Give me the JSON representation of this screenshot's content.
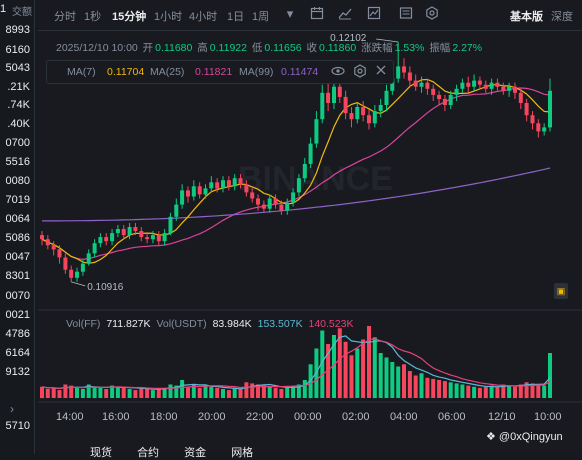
{
  "left_panel": {
    "header_value": "1",
    "header_label": "交额",
    "values": [
      "8993",
      "6160",
      "5043",
      ".21K",
      ".74K",
      ".40K",
      "0700",
      "5516",
      "0080",
      "7019",
      "0064",
      "5086",
      "0047",
      "8301",
      "0070",
      "0021",
      "4786",
      "6164",
      "9132",
      "5710"
    ],
    "expand_icon": "chevron-right-icon"
  },
  "toolbar": {
    "timeframes": [
      "分时",
      "1秒",
      "15分钟",
      "1小时",
      "4小时",
      "1日",
      "1周"
    ],
    "active_timeframe": "15分钟",
    "dropdown_icon": "caret-down-icon",
    "icons": [
      "calendar-icon",
      "chart-type-icon",
      "indicator-icon",
      "layout-icon",
      "settings-icon"
    ],
    "view_basic": "基本版",
    "view_depth": "深度"
  },
  "ohlc": {
    "datetime": "2025/12/10 10:00",
    "open_label": "开",
    "open": "0.11680",
    "high_label": "高",
    "high": "0.11922",
    "low_label": "低",
    "low": "0.11656",
    "close_label": "收",
    "close": "0.11860",
    "change_label": "涨跌幅",
    "change": "1.53%",
    "amplitude_label": "振幅",
    "amplitude": "2.27%"
  },
  "ma": {
    "ma7_label": "MA(7)",
    "ma7": "0.11704",
    "ma25_label": "MA(25)",
    "ma25": "0.11821",
    "ma99_label": "MA(99)",
    "ma99": "0.11474",
    "icons": [
      "eye-icon",
      "settings-icon",
      "close-icon"
    ]
  },
  "price_annotations": {
    "high": "0.12102",
    "low": "0.10916"
  },
  "volume": {
    "vol_label": "Vol(FF)",
    "vol": "711.827K",
    "vol_usdt_label": "Vol(USDT)",
    "vol_usdt": "83.984K",
    "ma1": "153.507K",
    "ma2": "140.523K"
  },
  "x_axis": [
    "14:00",
    "16:00",
    "18:00",
    "20:00",
    "22:00",
    "00:00",
    "02:00",
    "04:00",
    "06:00",
    "12/10",
    "10:00"
  ],
  "bottom_tabs": [
    "现货",
    "合约",
    "资金",
    "网格"
  ],
  "watermark": "@0xQingyun",
  "colors": {
    "up": "#0ecb81",
    "down": "#f6465d",
    "ma7": "#f0b90b",
    "ma25": "#d9459b",
    "ma99": "#8e62c7",
    "vol_ma1": "#5ab9d6",
    "vol_ma2": "#e8417a"
  },
  "chart_data": {
    "type": "candlestick",
    "candles": [
      [
        0.1115,
        0.1113,
        0.1117,
        0.111
      ],
      [
        0.1113,
        0.111,
        0.1115,
        0.1108
      ],
      [
        0.111,
        0.1108,
        0.1112,
        0.1105
      ],
      [
        0.1108,
        0.1104,
        0.111,
        0.1101
      ],
      [
        0.1104,
        0.1098,
        0.1106,
        0.1096
      ],
      [
        0.1098,
        0.1094,
        0.11,
        0.1092
      ],
      [
        0.1094,
        0.1097,
        0.1099,
        0.1092
      ],
      [
        0.1097,
        0.1101,
        0.1103,
        0.1095
      ],
      [
        0.1101,
        0.1106,
        0.1108,
        0.11
      ],
      [
        0.1106,
        0.1111,
        0.1113,
        0.1104
      ],
      [
        0.1111,
        0.1114,
        0.1116,
        0.1109
      ],
      [
        0.1114,
        0.1112,
        0.1116,
        0.111
      ],
      [
        0.1112,
        0.1116,
        0.1118,
        0.111
      ],
      [
        0.1116,
        0.1118,
        0.112,
        0.1114
      ],
      [
        0.1118,
        0.1115,
        0.112,
        0.1113
      ],
      [
        0.1115,
        0.1119,
        0.1121,
        0.1113
      ],
      [
        0.1119,
        0.1117,
        0.1121,
        0.1115
      ],
      [
        0.1117,
        0.1114,
        0.1119,
        0.1112
      ],
      [
        0.1114,
        0.1113,
        0.1116,
        0.1111
      ],
      [
        0.1113,
        0.1115,
        0.1117,
        0.1111
      ],
      [
        0.1115,
        0.1112,
        0.1117,
        0.111
      ],
      [
        0.1112,
        0.1116,
        0.1118,
        0.111
      ],
      [
        0.1116,
        0.1124,
        0.1126,
        0.1115
      ],
      [
        0.1124,
        0.113,
        0.1133,
        0.1122
      ],
      [
        0.113,
        0.1137,
        0.114,
        0.1128
      ],
      [
        0.1137,
        0.1134,
        0.1139,
        0.1131
      ],
      [
        0.1134,
        0.1139,
        0.1142,
        0.1132
      ],
      [
        0.1139,
        0.1135,
        0.1141,
        0.1133
      ],
      [
        0.1135,
        0.1138,
        0.114,
        0.1133
      ],
      [
        0.1138,
        0.1141,
        0.1144,
        0.1136
      ],
      [
        0.1141,
        0.1138,
        0.1143,
        0.1136
      ],
      [
        0.1138,
        0.1142,
        0.1144,
        0.1136
      ],
      [
        0.1142,
        0.1139,
        0.1144,
        0.1137
      ],
      [
        0.1139,
        0.1143,
        0.1145,
        0.1137
      ],
      [
        0.1143,
        0.114,
        0.1145,
        0.1138
      ],
      [
        0.114,
        0.1136,
        0.1142,
        0.1134
      ],
      [
        0.1136,
        0.1133,
        0.1138,
        0.1131
      ],
      [
        0.1133,
        0.113,
        0.1135,
        0.1127
      ],
      [
        0.113,
        0.1128,
        0.1132,
        0.1126
      ],
      [
        0.1128,
        0.1133,
        0.1135,
        0.1126
      ],
      [
        0.1133,
        0.113,
        0.1135,
        0.1128
      ],
      [
        0.113,
        0.1127,
        0.1132,
        0.1125
      ],
      [
        0.1127,
        0.1131,
        0.1133,
        0.1125
      ],
      [
        0.1131,
        0.1136,
        0.1138,
        0.1129
      ],
      [
        0.1136,
        0.1143,
        0.1145,
        0.1134
      ],
      [
        0.1143,
        0.115,
        0.1153,
        0.1141
      ],
      [
        0.115,
        0.116,
        0.1163,
        0.1148
      ],
      [
        0.116,
        0.1172,
        0.1176,
        0.1158
      ],
      [
        0.1172,
        0.1185,
        0.1189,
        0.117
      ],
      [
        0.1185,
        0.118,
        0.119,
        0.1176
      ],
      [
        0.118,
        0.1188,
        0.1193,
        0.1177
      ],
      [
        0.1188,
        0.1183,
        0.1191,
        0.118
      ],
      [
        0.1183,
        0.1175,
        0.1186,
        0.1172
      ],
      [
        0.1175,
        0.1172,
        0.1178,
        0.1168
      ],
      [
        0.1172,
        0.1178,
        0.118,
        0.117
      ],
      [
        0.1178,
        0.1174,
        0.1181,
        0.1171
      ],
      [
        0.1174,
        0.117,
        0.1177,
        0.1167
      ],
      [
        0.117,
        0.1176,
        0.1179,
        0.1168
      ],
      [
        0.1176,
        0.1179,
        0.1182,
        0.1173
      ],
      [
        0.1179,
        0.1186,
        0.1189,
        0.1176
      ],
      [
        0.1186,
        0.1192,
        0.1196,
        0.1184
      ],
      [
        0.1192,
        0.1198,
        0.121,
        0.119
      ],
      [
        0.1198,
        0.1195,
        0.1202,
        0.1192
      ],
      [
        0.1195,
        0.1191,
        0.1198,
        0.1188
      ],
      [
        0.1191,
        0.1188,
        0.1194,
        0.1186
      ],
      [
        0.1188,
        0.119,
        0.1193,
        0.1185
      ],
      [
        0.119,
        0.1187,
        0.1192,
        0.1184
      ],
      [
        0.1187,
        0.1184,
        0.1189,
        0.1181
      ],
      [
        0.1184,
        0.1182,
        0.1186,
        0.1179
      ],
      [
        0.1182,
        0.1179,
        0.1184,
        0.1176
      ],
      [
        0.1179,
        0.1184,
        0.1186,
        0.1177
      ],
      [
        0.1184,
        0.1187,
        0.1189,
        0.1181
      ],
      [
        0.1187,
        0.119,
        0.1192,
        0.1185
      ],
      [
        0.119,
        0.1188,
        0.1193,
        0.1185
      ],
      [
        0.1188,
        0.1191,
        0.1194,
        0.1186
      ],
      [
        0.1191,
        0.1189,
        0.1193,
        0.1187
      ],
      [
        0.1189,
        0.1187,
        0.1191,
        0.1185
      ],
      [
        0.1187,
        0.119,
        0.1192,
        0.1184
      ],
      [
        0.119,
        0.1188,
        0.1192,
        0.1186
      ],
      [
        0.1188,
        0.1186,
        0.119,
        0.1184
      ],
      [
        0.1186,
        0.1188,
        0.119,
        0.1183
      ],
      [
        0.1188,
        0.1185,
        0.119,
        0.1182
      ],
      [
        0.1185,
        0.118,
        0.1187,
        0.1177
      ],
      [
        0.118,
        0.1174,
        0.1182,
        0.1171
      ],
      [
        0.1174,
        0.117,
        0.1176,
        0.1167
      ],
      [
        0.117,
        0.1166,
        0.1172,
        0.1163
      ],
      [
        0.1166,
        0.1168,
        0.117,
        0.1164
      ],
      [
        0.1168,
        0.1186,
        0.1192,
        0.1166
      ]
    ],
    "volumes": [
      [
        50,
        0
      ],
      [
        40,
        0
      ],
      [
        45,
        0
      ],
      [
        35,
        0
      ],
      [
        60,
        0
      ],
      [
        55,
        0
      ],
      [
        45,
        1
      ],
      [
        40,
        1
      ],
      [
        60,
        1
      ],
      [
        50,
        1
      ],
      [
        45,
        1
      ],
      [
        40,
        0
      ],
      [
        55,
        1
      ],
      [
        45,
        1
      ],
      [
        50,
        0
      ],
      [
        40,
        1
      ],
      [
        35,
        0
      ],
      [
        45,
        0
      ],
      [
        40,
        0
      ],
      [
        35,
        1
      ],
      [
        40,
        0
      ],
      [
        45,
        1
      ],
      [
        60,
        1
      ],
      [
        55,
        1
      ],
      [
        80,
        1
      ],
      [
        50,
        0
      ],
      [
        60,
        1
      ],
      [
        45,
        0
      ],
      [
        55,
        1
      ],
      [
        50,
        1
      ],
      [
        45,
        0
      ],
      [
        40,
        1
      ],
      [
        35,
        0
      ],
      [
        45,
        1
      ],
      [
        40,
        0
      ],
      [
        70,
        0
      ],
      [
        65,
        0
      ],
      [
        60,
        0
      ],
      [
        55,
        0
      ],
      [
        50,
        1
      ],
      [
        45,
        0
      ],
      [
        40,
        0
      ],
      [
        45,
        1
      ],
      [
        55,
        1
      ],
      [
        60,
        1
      ],
      [
        80,
        1
      ],
      [
        150,
        1
      ],
      [
        220,
        1
      ],
      [
        300,
        1
      ],
      [
        240,
        0
      ],
      [
        280,
        1
      ],
      [
        310,
        0
      ],
      [
        250,
        0
      ],
      [
        190,
        0
      ],
      [
        220,
        1
      ],
      [
        260,
        0
      ],
      [
        320,
        0
      ],
      [
        270,
        1
      ],
      [
        200,
        1
      ],
      [
        180,
        1
      ],
      [
        160,
        1
      ],
      [
        140,
        1
      ],
      [
        150,
        0
      ],
      [
        120,
        0
      ],
      [
        100,
        0
      ],
      [
        110,
        1
      ],
      [
        90,
        0
      ],
      [
        85,
        0
      ],
      [
        80,
        0
      ],
      [
        75,
        0
      ],
      [
        70,
        1
      ],
      [
        65,
        1
      ],
      [
        60,
        1
      ],
      [
        55,
        0
      ],
      [
        50,
        1
      ],
      [
        45,
        0
      ],
      [
        50,
        0
      ],
      [
        55,
        1
      ],
      [
        50,
        0
      ],
      [
        60,
        0
      ],
      [
        55,
        1
      ],
      [
        50,
        0
      ],
      [
        60,
        0
      ],
      [
        70,
        0
      ],
      [
        65,
        0
      ],
      [
        60,
        0
      ],
      [
        55,
        1
      ],
      [
        200,
        1
      ]
    ],
    "x_range": [
      0,
      88
    ],
    "y_range": [
      0.1088,
      0.121
    ]
  }
}
